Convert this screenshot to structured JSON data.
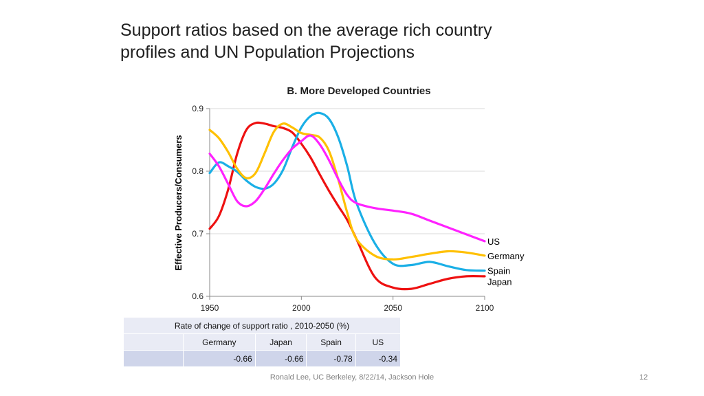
{
  "slide": {
    "title_line1": "Support ratios based on the average rich country",
    "title_line2": "profiles and UN Population Projections",
    "footer": "Ronald Lee, UC Berkeley, 8/22/14, Jackson Hole",
    "page_number": "12"
  },
  "chart_data": {
    "type": "line",
    "title": "B.  More Developed Countries",
    "xlabel": "",
    "ylabel": "Effective Producers/Consumers",
    "xlim": [
      1950,
      2100
    ],
    "ylim": [
      0.6,
      0.9
    ],
    "xticks": [
      1950,
      2000,
      2050,
      2100
    ],
    "yticks": [
      0.6,
      0.7,
      0.8,
      0.9
    ],
    "xtick_labels": [
      "1950",
      "2000",
      "2050",
      "2100"
    ],
    "ytick_labels": [
      "0.6",
      "0.7",
      "0.8",
      "0.9"
    ],
    "grid": "horizontal",
    "legend": "series labels at right end of lines",
    "series": [
      {
        "name": "US",
        "color": "#ff22ff",
        "x": [
          1950,
          1955,
          1960,
          1965,
          1970,
          1975,
          1980,
          1985,
          1990,
          1995,
          2000,
          2005,
          2010,
          2015,
          2020,
          2025,
          2030,
          2040,
          2050,
          2060,
          2070,
          2080,
          2090,
          2100
        ],
        "y": [
          0.828,
          0.808,
          0.78,
          0.752,
          0.744,
          0.752,
          0.772,
          0.796,
          0.818,
          0.836,
          0.848,
          0.857,
          0.843,
          0.818,
          0.788,
          0.762,
          0.749,
          0.741,
          0.737,
          0.732,
          0.721,
          0.71,
          0.699,
          0.688
        ]
      },
      {
        "name": "Germany",
        "color": "#ffc000",
        "x": [
          1950,
          1955,
          1960,
          1965,
          1970,
          1975,
          1980,
          1985,
          1990,
          1995,
          2000,
          2005,
          2010,
          2015,
          2020,
          2025,
          2030,
          2040,
          2050,
          2060,
          2070,
          2080,
          2090,
          2100
        ],
        "y": [
          0.866,
          0.853,
          0.831,
          0.804,
          0.789,
          0.797,
          0.829,
          0.863,
          0.876,
          0.87,
          0.861,
          0.858,
          0.854,
          0.833,
          0.788,
          0.734,
          0.692,
          0.665,
          0.659,
          0.663,
          0.668,
          0.672,
          0.67,
          0.665
        ]
      },
      {
        "name": "Spain",
        "color": "#1aafe6",
        "x": [
          1950,
          1955,
          1960,
          1965,
          1970,
          1975,
          1980,
          1985,
          1990,
          1995,
          2000,
          2005,
          2010,
          2015,
          2020,
          2025,
          2030,
          2040,
          2050,
          2060,
          2070,
          2080,
          2090,
          2100
        ],
        "y": [
          0.797,
          0.814,
          0.808,
          0.799,
          0.785,
          0.775,
          0.772,
          0.78,
          0.802,
          0.838,
          0.87,
          0.888,
          0.893,
          0.884,
          0.855,
          0.808,
          0.75,
          0.685,
          0.652,
          0.65,
          0.655,
          0.648,
          0.642,
          0.641
        ]
      },
      {
        "name": "Japan",
        "color": "#ee1111",
        "x": [
          1950,
          1955,
          1960,
          1965,
          1970,
          1975,
          1980,
          1985,
          1990,
          1995,
          2000,
          2005,
          2010,
          2015,
          2020,
          2025,
          2030,
          2040,
          2050,
          2060,
          2070,
          2080,
          2090,
          2100
        ],
        "y": [
          0.708,
          0.728,
          0.77,
          0.828,
          0.866,
          0.877,
          0.876,
          0.872,
          0.869,
          0.862,
          0.844,
          0.822,
          0.795,
          0.769,
          0.745,
          0.722,
          0.692,
          0.631,
          0.614,
          0.612,
          0.62,
          0.628,
          0.632,
          0.632
        ]
      }
    ]
  },
  "table": {
    "caption": "Rate of change of support ratio , 2010-2050  (%)",
    "headers": [
      "Germany",
      "Japan",
      "Spain",
      "US"
    ],
    "values": [
      "-0.66",
      "-0.66",
      "-0.78",
      "-0.34"
    ]
  }
}
